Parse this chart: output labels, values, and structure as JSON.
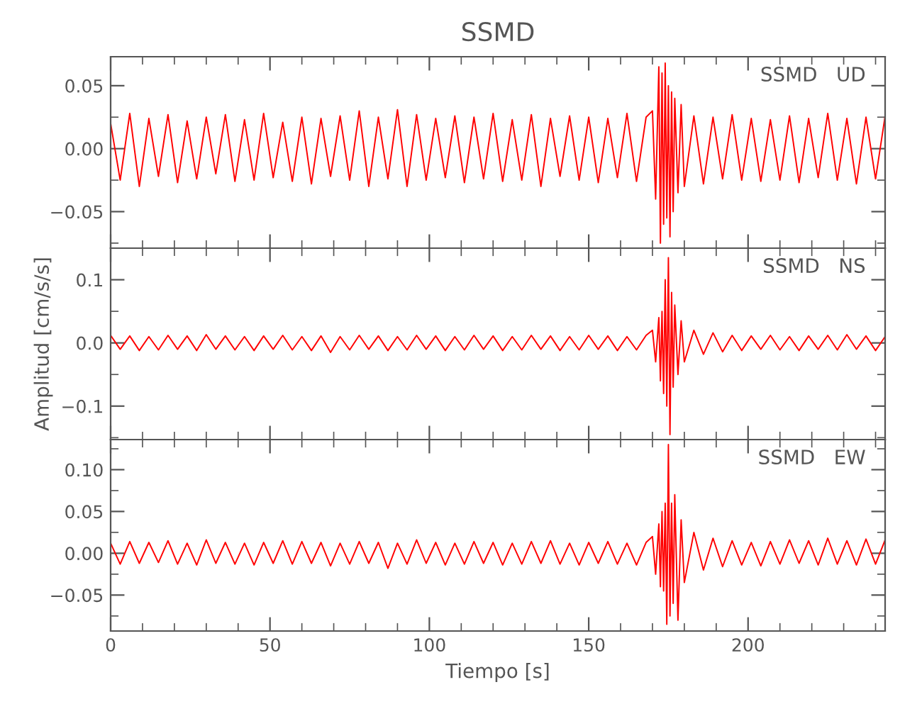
{
  "chart_data": [
    {
      "type": "line",
      "title": "SSMD",
      "annotations": [
        "SSMD   UD"
      ],
      "tick_labels": "y",
      "grid": false,
      "legend": false,
      "marker": "none",
      "line_style": "solid",
      "xlim": [
        0,
        243
      ],
      "ylim": [
        -0.079,
        0.073
      ],
      "xticks": [
        0,
        {
          "value": 10,
          "label": null
        },
        {
          "value": 20,
          "label": null
        },
        {
          "value": 30,
          "label": null
        },
        {
          "value": 40,
          "label": null
        },
        50,
        {
          "value": 60,
          "label": null
        },
        {
          "value": 70,
          "label": null
        },
        {
          "value": 80,
          "label": null
        },
        {
          "value": 90,
          "label": null
        },
        100,
        {
          "value": 110,
          "label": null
        },
        {
          "value": 120,
          "label": null
        },
        {
          "value": 130,
          "label": null
        },
        {
          "value": 140,
          "label": null
        },
        150,
        {
          "value": 160,
          "label": null
        },
        {
          "value": 170,
          "label": null
        },
        {
          "value": 180,
          "label": null
        },
        {
          "value": 190,
          "label": null
        },
        200,
        {
          "value": 210,
          "label": null
        },
        {
          "value": 220,
          "label": null
        },
        {
          "value": 230,
          "label": null
        },
        {
          "value": 240,
          "label": null
        }
      ],
      "yticks": [
        {
          "value": -0.075,
          "label": null
        },
        {
          "value": -0.05,
          "label": "−0.05"
        },
        {
          "value": -0.025,
          "label": null
        },
        {
          "value": 0,
          "label": "0.00"
        },
        {
          "value": 0.025,
          "label": null
        },
        {
          "value": 0.05,
          "label": "0.05"
        }
      ],
      "series": [
        {
          "color": "#ff0000",
          "x": [
            0,
            3,
            6,
            9,
            12,
            15,
            18,
            21,
            24,
            27,
            30,
            33,
            36,
            39,
            42,
            45,
            48,
            51,
            54,
            57,
            60,
            63,
            66,
            69,
            72,
            75,
            78,
            81,
            84,
            87,
            90,
            93,
            96,
            99,
            102,
            105,
            108,
            111,
            114,
            117,
            120,
            123,
            126,
            129,
            132,
            135,
            138,
            141,
            144,
            147,
            150,
            153,
            156,
            159,
            162,
            165,
            168,
            170,
            171,
            172,
            172.5,
            173,
            173.5,
            174,
            174.5,
            175,
            175.5,
            176,
            176.5,
            177,
            178,
            179,
            180,
            183,
            186,
            189,
            192,
            195,
            198,
            201,
            204,
            207,
            210,
            213,
            216,
            219,
            222,
            225,
            228,
            231,
            234,
            237,
            240,
            243
          ],
          "values": [
            0.02,
            -0.025,
            0.028,
            -0.03,
            0.024,
            -0.022,
            0.027,
            -0.027,
            0.022,
            -0.024,
            0.025,
            -0.02,
            0.027,
            -0.026,
            0.023,
            -0.025,
            0.028,
            -0.023,
            0.021,
            -0.026,
            0.025,
            -0.028,
            0.024,
            -0.022,
            0.026,
            -0.025,
            0.03,
            -0.03,
            0.025,
            -0.024,
            0.031,
            -0.03,
            0.027,
            -0.025,
            0.024,
            -0.023,
            0.026,
            -0.027,
            0.025,
            -0.024,
            0.028,
            -0.026,
            0.023,
            -0.025,
            0.027,
            -0.03,
            0.024,
            -0.022,
            0.026,
            -0.025,
            0.025,
            -0.027,
            0.024,
            -0.023,
            0.028,
            -0.026,
            0.025,
            0.03,
            -0.04,
            0.065,
            -0.075,
            0.06,
            -0.06,
            0.068,
            -0.055,
            0.05,
            -0.07,
            0.045,
            -0.05,
            0.04,
            -0.035,
            0.035,
            -0.03,
            0.026,
            -0.028,
            0.025,
            -0.024,
            0.027,
            -0.025,
            0.024,
            -0.026,
            0.023,
            -0.025,
            0.026,
            -0.027,
            0.024,
            -0.023,
            0.028,
            -0.025,
            0.024,
            -0.028,
            0.025,
            -0.024,
            0.026
          ]
        }
      ]
    },
    {
      "type": "line",
      "ylabel": "Amplitud [cm/s/s]",
      "annotations": [
        "SSMD   NS"
      ],
      "tick_labels": "y",
      "grid": false,
      "legend": false,
      "marker": "none",
      "line_style": "solid",
      "xlim": [
        0,
        243
      ],
      "ylim": [
        -0.153,
        0.15
      ],
      "xticks": [
        0,
        {
          "value": 10,
          "label": null
        },
        {
          "value": 20,
          "label": null
        },
        {
          "value": 30,
          "label": null
        },
        {
          "value": 40,
          "label": null
        },
        50,
        {
          "value": 60,
          "label": null
        },
        {
          "value": 70,
          "label": null
        },
        {
          "value": 80,
          "label": null
        },
        {
          "value": 90,
          "label": null
        },
        100,
        {
          "value": 110,
          "label": null
        },
        {
          "value": 120,
          "label": null
        },
        {
          "value": 130,
          "label": null
        },
        {
          "value": 140,
          "label": null
        },
        150,
        {
          "value": 160,
          "label": null
        },
        {
          "value": 170,
          "label": null
        },
        {
          "value": 180,
          "label": null
        },
        {
          "value": 190,
          "label": null
        },
        200,
        {
          "value": 210,
          "label": null
        },
        {
          "value": 220,
          "label": null
        },
        {
          "value": 230,
          "label": null
        },
        {
          "value": 240,
          "label": null
        }
      ],
      "yticks": [
        {
          "value": -0.15,
          "label": null
        },
        {
          "value": -0.1,
          "label": "−0.1"
        },
        {
          "value": -0.05,
          "label": null
        },
        {
          "value": 0,
          "label": "0.0"
        },
        {
          "value": 0.05,
          "label": null
        },
        {
          "value": 0.1,
          "label": "0.1"
        }
      ],
      "series": [
        {
          "color": "#ff0000",
          "x": [
            0,
            3,
            6,
            9,
            12,
            15,
            18,
            21,
            24,
            27,
            30,
            33,
            36,
            39,
            42,
            45,
            48,
            51,
            54,
            57,
            60,
            63,
            66,
            69,
            72,
            75,
            78,
            81,
            84,
            87,
            90,
            93,
            96,
            99,
            102,
            105,
            108,
            111,
            114,
            117,
            120,
            123,
            126,
            129,
            132,
            135,
            138,
            141,
            144,
            147,
            150,
            153,
            156,
            159,
            162,
            165,
            168,
            170,
            171,
            172,
            172.5,
            173,
            173.5,
            174,
            174.5,
            175,
            175.5,
            176,
            176.5,
            177,
            178,
            179,
            180,
            183,
            186,
            189,
            192,
            195,
            198,
            201,
            204,
            207,
            210,
            213,
            216,
            219,
            222,
            225,
            228,
            231,
            234,
            237,
            240,
            243
          ],
          "values": [
            0.012,
            -0.01,
            0.011,
            -0.012,
            0.01,
            -0.011,
            0.012,
            -0.01,
            0.011,
            -0.012,
            0.013,
            -0.01,
            0.011,
            -0.011,
            0.01,
            -0.012,
            0.011,
            -0.01,
            0.012,
            -0.011,
            0.01,
            -0.012,
            0.011,
            -0.015,
            0.01,
            -0.011,
            0.012,
            -0.01,
            0.011,
            -0.012,
            0.01,
            -0.011,
            0.012,
            -0.01,
            0.011,
            -0.012,
            0.01,
            -0.011,
            0.012,
            -0.01,
            0.011,
            -0.012,
            0.01,
            -0.011,
            0.012,
            -0.01,
            0.011,
            -0.012,
            0.01,
            -0.011,
            0.012,
            -0.01,
            0.011,
            -0.012,
            0.01,
            -0.011,
            0.012,
            0.02,
            -0.03,
            0.04,
            -0.06,
            0.05,
            -0.08,
            0.1,
            -0.1,
            0.135,
            -0.145,
            0.08,
            -0.07,
            0.06,
            -0.05,
            0.035,
            -0.03,
            0.02,
            -0.018,
            0.016,
            -0.014,
            0.012,
            -0.012,
            0.011,
            -0.01,
            0.012,
            -0.011,
            0.01,
            -0.012,
            0.011,
            -0.01,
            0.012,
            -0.011,
            0.013,
            -0.01,
            0.011,
            -0.012,
            0.01
          ]
        }
      ]
    },
    {
      "type": "line",
      "xlabel": "Tiempo [s]",
      "annotations": [
        "SSMD   EW"
      ],
      "grid": false,
      "legend": false,
      "marker": "none",
      "line_style": "solid",
      "xlim": [
        0,
        243
      ],
      "ylim": [
        -0.093,
        0.136
      ],
      "xticks": [
        0,
        {
          "value": 10,
          "label": null
        },
        {
          "value": 20,
          "label": null
        },
        {
          "value": 30,
          "label": null
        },
        {
          "value": 40,
          "label": null
        },
        50,
        {
          "value": 60,
          "label": null
        },
        {
          "value": 70,
          "label": null
        },
        {
          "value": 80,
          "label": null
        },
        {
          "value": 90,
          "label": null
        },
        100,
        {
          "value": 110,
          "label": null
        },
        {
          "value": 120,
          "label": null
        },
        {
          "value": 130,
          "label": null
        },
        {
          "value": 140,
          "label": null
        },
        150,
        {
          "value": 160,
          "label": null
        },
        {
          "value": 170,
          "label": null
        },
        {
          "value": 180,
          "label": null
        },
        {
          "value": 190,
          "label": null
        },
        200,
        {
          "value": 210,
          "label": null
        },
        {
          "value": 220,
          "label": null
        },
        {
          "value": 230,
          "label": null
        },
        {
          "value": 240,
          "label": null
        }
      ],
      "yticks": [
        {
          "value": -0.075,
          "label": null
        },
        {
          "value": -0.05,
          "label": "−0.05"
        },
        {
          "value": -0.025,
          "label": null
        },
        {
          "value": 0,
          "label": "0.00"
        },
        {
          "value": 0.025,
          "label": null
        },
        {
          "value": 0.05,
          "label": "0.05"
        },
        {
          "value": 0.075,
          "label": null
        },
        {
          "value": 0.1,
          "label": "0.10"
        },
        {
          "value": 0.125,
          "label": null
        }
      ],
      "series": [
        {
          "color": "#ff0000",
          "x": [
            0,
            3,
            6,
            9,
            12,
            15,
            18,
            21,
            24,
            27,
            30,
            33,
            36,
            39,
            42,
            45,
            48,
            51,
            54,
            57,
            60,
            63,
            66,
            69,
            72,
            75,
            78,
            81,
            84,
            87,
            90,
            93,
            96,
            99,
            102,
            105,
            108,
            111,
            114,
            117,
            120,
            123,
            126,
            129,
            132,
            135,
            138,
            141,
            144,
            147,
            150,
            153,
            156,
            159,
            162,
            165,
            168,
            170,
            171,
            172,
            172.5,
            173,
            173.5,
            174,
            174.5,
            175,
            175.5,
            176,
            176.5,
            177,
            178,
            179,
            180,
            183,
            186,
            189,
            192,
            195,
            198,
            201,
            204,
            207,
            210,
            213,
            216,
            219,
            222,
            225,
            228,
            231,
            234,
            237,
            240,
            243
          ],
          "values": [
            0.012,
            -0.013,
            0.014,
            -0.012,
            0.013,
            -0.011,
            0.015,
            -0.013,
            0.012,
            -0.014,
            0.016,
            -0.012,
            0.013,
            -0.013,
            0.012,
            -0.014,
            0.013,
            -0.012,
            0.015,
            -0.013,
            0.014,
            -0.012,
            0.013,
            -0.015,
            0.012,
            -0.013,
            0.014,
            -0.012,
            0.013,
            -0.018,
            0.012,
            -0.013,
            0.016,
            -0.012,
            0.013,
            -0.014,
            0.012,
            -0.013,
            0.014,
            -0.012,
            0.013,
            -0.014,
            0.012,
            -0.013,
            0.014,
            -0.012,
            0.015,
            -0.013,
            0.012,
            -0.014,
            0.013,
            -0.012,
            0.014,
            -0.013,
            0.012,
            -0.014,
            0.013,
            0.02,
            -0.025,
            0.035,
            -0.04,
            0.05,
            -0.045,
            0.06,
            -0.085,
            0.13,
            -0.075,
            0.06,
            -0.06,
            0.07,
            -0.08,
            0.04,
            -0.035,
            0.025,
            -0.02,
            0.018,
            -0.016,
            0.015,
            -0.014,
            0.013,
            -0.015,
            0.014,
            -0.013,
            0.016,
            -0.012,
            0.015,
            -0.014,
            0.018,
            -0.013,
            0.015,
            -0.014,
            0.017,
            -0.013,
            0.016
          ]
        }
      ]
    }
  ]
}
